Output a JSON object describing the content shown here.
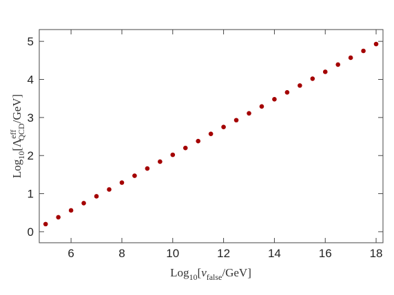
{
  "chart_data": {
    "type": "scatter",
    "x_label": [
      "Log",
      "10",
      "[",
      "v",
      "false",
      "/GeV]"
    ],
    "y_label": [
      "Log",
      "10",
      "[Λ",
      "eff",
      "QCD",
      "/GeV]"
    ],
    "series": [
      {
        "name": "points",
        "color": "#a40000",
        "x": [
          5,
          5.5,
          6,
          6.5,
          7,
          7.5,
          8,
          8.5,
          9,
          9.5,
          10,
          10.5,
          11,
          11.5,
          12,
          12.5,
          13,
          13.5,
          14,
          14.5,
          15,
          15.5,
          16,
          16.5,
          17,
          17.5,
          18
        ],
        "values": [
          0.2,
          0.38,
          0.56,
          0.75,
          0.93,
          1.11,
          1.29,
          1.47,
          1.66,
          1.84,
          2.02,
          2.2,
          2.38,
          2.57,
          2.75,
          2.93,
          3.11,
          3.29,
          3.48,
          3.66,
          3.84,
          4.02,
          4.2,
          4.39,
          4.57,
          4.75,
          4.93
        ]
      }
    ],
    "xlim": [
      4.75,
      18.27
    ],
    "xticks": [
      6,
      8,
      10,
      12,
      14,
      16,
      18
    ],
    "ylim": [
      -0.29,
      5.31
    ],
    "yticks": [
      0,
      1,
      2,
      3,
      4,
      5
    ]
  }
}
